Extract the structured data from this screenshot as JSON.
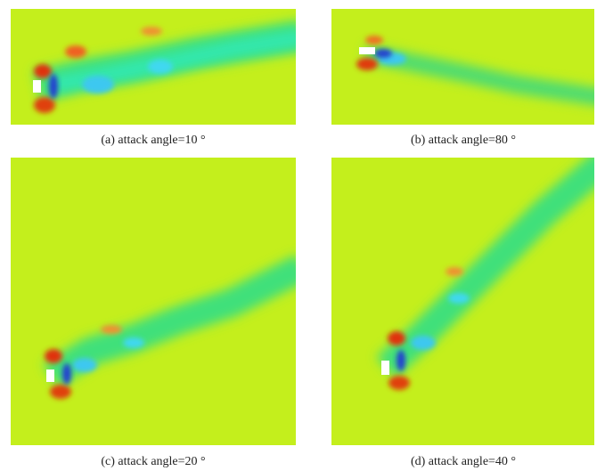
{
  "captions": [
    "(a) attack angle=10 °",
    "(b) attack angle=80 °",
    "(c) attack angle=20 °",
    "(d) attack angle=40 °"
  ]
}
